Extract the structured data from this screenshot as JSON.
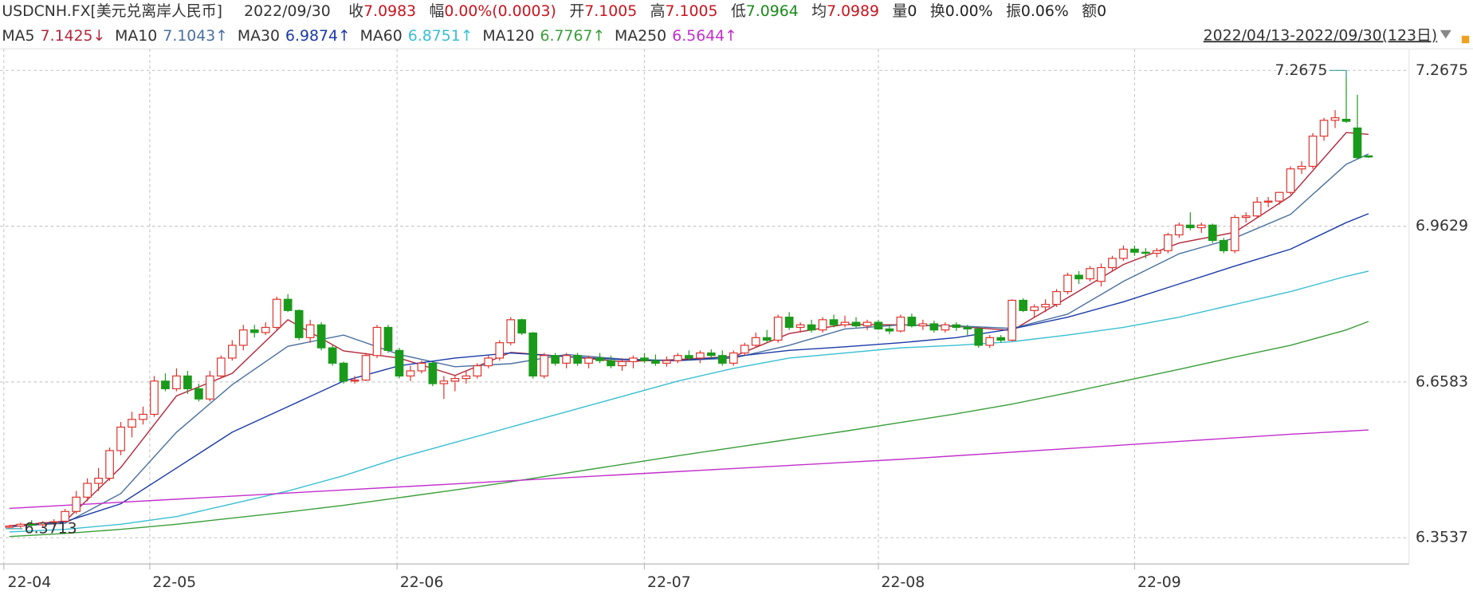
{
  "chart_data": {
    "type": "candlestick",
    "title": "USDCNH.FX[美元兑离岸人民币]",
    "date": "2022/09/30",
    "quote": [
      {
        "label": "收",
        "value": 7.0983,
        "color": "#c8141e"
      },
      {
        "label": "幅",
        "value": "0.00%(0.0003)",
        "color": "#c8141e"
      },
      {
        "label": "开",
        "value": 7.1005,
        "color": "#c8141e"
      },
      {
        "label": "高",
        "value": 7.1005,
        "color": "#c8141e"
      },
      {
        "label": "低",
        "value": 7.0964,
        "color": "#1a8a1a"
      },
      {
        "label": "均",
        "value": 7.0989,
        "color": "#c8141e"
      },
      {
        "label": "量",
        "value": 0,
        "color": "#222222"
      },
      {
        "label": "换",
        "value": "0.00%",
        "color": "#222222"
      },
      {
        "label": "振",
        "value": "0.06%",
        "color": "#222222"
      },
      {
        "label": "额",
        "value": 0,
        "color": "#222222"
      }
    ],
    "range_label": "2022/04/13-2022/09/30(123日)",
    "up_color": "#e0302a",
    "down_color": "#1a9a1a",
    "ylim": [
      6.3023,
      7.3097
    ],
    "yticks": [
      7.2675,
      6.9629,
      6.6583,
      6.3537
    ],
    "xlim": [
      -0.84,
      125.64
    ],
    "xticks": [
      {
        "value": -0.5,
        "label": "22-04"
      },
      {
        "value": 12.6,
        "label": "22-05"
      },
      {
        "value": 34.8,
        "label": "22-06"
      },
      {
        "value": 57,
        "label": "22-07"
      },
      {
        "value": 78,
        "label": "22-08"
      },
      {
        "value": 101,
        "label": "22-09"
      }
    ],
    "grid": true,
    "max_annotation": 7.2675,
    "min_annotation": 6.3713,
    "ohlc": [
      [
        6.374,
        6.379,
        6.3713,
        6.3765
      ],
      [
        6.3765,
        6.383,
        6.373,
        6.38
      ],
      [
        6.38,
        6.388,
        6.376,
        6.379
      ],
      [
        6.379,
        6.386,
        6.374,
        6.383
      ],
      [
        6.383,
        6.39,
        6.378,
        6.385
      ],
      [
        6.386,
        6.41,
        6.383,
        6.405
      ],
      [
        6.405,
        6.445,
        6.4,
        6.433
      ],
      [
        6.433,
        6.47,
        6.425,
        6.46
      ],
      [
        6.46,
        6.49,
        6.445,
        6.47
      ],
      [
        6.47,
        6.53,
        6.465,
        6.524
      ],
      [
        6.524,
        6.58,
        6.515,
        6.57
      ],
      [
        6.57,
        6.6,
        6.55,
        6.585
      ],
      [
        6.585,
        6.61,
        6.575,
        6.595
      ],
      [
        6.595,
        6.67,
        6.59,
        6.66
      ],
      [
        6.66,
        6.675,
        6.64,
        6.645
      ],
      [
        6.645,
        6.685,
        6.64,
        6.67
      ],
      [
        6.67,
        6.68,
        6.635,
        6.645
      ],
      [
        6.645,
        6.655,
        6.62,
        6.625
      ],
      [
        6.625,
        6.68,
        6.62,
        6.67
      ],
      [
        6.67,
        6.71,
        6.665,
        6.705
      ],
      [
        6.705,
        6.74,
        6.7,
        6.73
      ],
      [
        6.73,
        6.77,
        6.72,
        6.76
      ],
      [
        6.76,
        6.77,
        6.745,
        6.755
      ],
      [
        6.755,
        6.775,
        6.75,
        6.765
      ],
      [
        6.765,
        6.825,
        6.76,
        6.82
      ],
      [
        6.82,
        6.83,
        6.795,
        6.798
      ],
      [
        6.798,
        6.8,
        6.74,
        6.745
      ],
      [
        6.745,
        6.78,
        6.735,
        6.77
      ],
      [
        6.77,
        6.775,
        6.72,
        6.725
      ],
      [
        6.725,
        6.73,
        6.69,
        6.695
      ],
      [
        6.695,
        6.698,
        6.655,
        6.66
      ],
      [
        6.66,
        6.67,
        6.655,
        6.662
      ],
      [
        6.662,
        6.715,
        6.66,
        6.71
      ],
      [
        6.71,
        6.77,
        6.705,
        6.765
      ],
      [
        6.765,
        6.77,
        6.715,
        6.72
      ],
      [
        6.72,
        6.725,
        6.665,
        6.67
      ],
      [
        6.67,
        6.69,
        6.66,
        6.68
      ],
      [
        6.68,
        6.7,
        6.675,
        6.695
      ],
      [
        6.695,
        6.698,
        6.65,
        6.655
      ],
      [
        6.655,
        6.67,
        6.625,
        6.66
      ],
      [
        6.66,
        6.67,
        6.64,
        6.665
      ],
      [
        6.665,
        6.68,
        6.655,
        6.67
      ],
      [
        6.67,
        6.695,
        6.665,
        6.69
      ],
      [
        6.69,
        6.71,
        6.685,
        6.705
      ],
      [
        6.705,
        6.74,
        6.7,
        6.735
      ],
      [
        6.735,
        6.785,
        6.73,
        6.78
      ],
      [
        6.78,
        6.782,
        6.75,
        6.754
      ],
      [
        6.754,
        6.756,
        6.665,
        6.67
      ],
      [
        6.67,
        6.715,
        6.665,
        6.71
      ],
      [
        6.71,
        6.715,
        6.69,
        6.695
      ],
      [
        6.695,
        6.715,
        6.685,
        6.71
      ],
      [
        6.71,
        6.715,
        6.69,
        6.695
      ],
      [
        6.695,
        6.71,
        6.685,
        6.705
      ],
      [
        6.705,
        6.715,
        6.695,
        6.7
      ],
      [
        6.7,
        6.71,
        6.685,
        6.69
      ],
      [
        6.69,
        6.705,
        6.68,
        6.698
      ],
      [
        6.698,
        6.71,
        6.685,
        6.705
      ],
      [
        6.705,
        6.715,
        6.695,
        6.7
      ],
      [
        6.7,
        6.712,
        6.69,
        6.695
      ],
      [
        6.695,
        6.708,
        6.688,
        6.7
      ],
      [
        6.7,
        6.715,
        6.695,
        6.71
      ],
      [
        6.71,
        6.72,
        6.7,
        6.705
      ],
      [
        6.705,
        6.72,
        6.695,
        6.715
      ],
      [
        6.715,
        6.722,
        6.705,
        6.71
      ],
      [
        6.71,
        6.72,
        6.69,
        6.695
      ],
      [
        6.695,
        6.72,
        6.69,
        6.715
      ],
      [
        6.715,
        6.735,
        6.71,
        6.73
      ],
      [
        6.73,
        6.755,
        6.725,
        6.745
      ],
      [
        6.745,
        6.76,
        6.735,
        6.74
      ],
      [
        6.74,
        6.79,
        6.735,
        6.785
      ],
      [
        6.785,
        6.795,
        6.76,
        6.765
      ],
      [
        6.765,
        6.775,
        6.755,
        6.77
      ],
      [
        6.77,
        6.78,
        6.755,
        6.76
      ],
      [
        6.76,
        6.785,
        6.755,
        6.78
      ],
      [
        6.78,
        6.79,
        6.765,
        6.77
      ],
      [
        6.77,
        6.788,
        6.765,
        6.775
      ],
      [
        6.775,
        6.785,
        6.765,
        6.768
      ],
      [
        6.768,
        6.78,
        6.76,
        6.775
      ],
      [
        6.775,
        6.78,
        6.76,
        6.762
      ],
      [
        6.762,
        6.77,
        6.752,
        6.758
      ],
      [
        6.758,
        6.79,
        6.755,
        6.785
      ],
      [
        6.785,
        6.792,
        6.765,
        6.768
      ],
      [
        6.768,
        6.78,
        6.76,
        6.772
      ],
      [
        6.772,
        6.778,
        6.755,
        6.76
      ],
      [
        6.76,
        6.775,
        6.755,
        6.77
      ],
      [
        6.77,
        6.775,
        6.758,
        6.765
      ],
      [
        6.765,
        6.77,
        6.75,
        6.762
      ],
      [
        6.762,
        6.765,
        6.725,
        6.73
      ],
      [
        6.73,
        6.75,
        6.725,
        6.745
      ],
      [
        6.745,
        6.75,
        6.735,
        6.74
      ],
      [
        6.74,
        6.82,
        6.738,
        6.818
      ],
      [
        6.818,
        6.822,
        6.795,
        6.798
      ],
      [
        6.798,
        6.81,
        6.785,
        6.805
      ],
      [
        6.805,
        6.82,
        6.795,
        6.81
      ],
      [
        6.81,
        6.84,
        6.805,
        6.835
      ],
      [
        6.835,
        6.872,
        6.83,
        6.867
      ],
      [
        6.867,
        6.875,
        6.85,
        6.86
      ],
      [
        6.86,
        6.885,
        6.855,
        6.88
      ],
      [
        6.855,
        6.89,
        6.845,
        6.882
      ],
      [
        6.882,
        6.905,
        6.875,
        6.9
      ],
      [
        6.9,
        6.925,
        6.895,
        6.918
      ],
      [
        6.918,
        6.925,
        6.905,
        6.912
      ],
      [
        6.912,
        6.92,
        6.9,
        6.91
      ],
      [
        6.91,
        6.92,
        6.902,
        6.915
      ],
      [
        6.915,
        6.95,
        6.91,
        6.946
      ],
      [
        6.946,
        6.97,
        6.94,
        6.965
      ],
      [
        6.965,
        6.99,
        6.955,
        6.96
      ],
      [
        6.96,
        6.97,
        6.95,
        6.965
      ],
      [
        6.965,
        6.968,
        6.93,
        6.935
      ],
      [
        6.935,
        6.94,
        6.91,
        6.915
      ],
      [
        6.915,
        6.985,
        6.91,
        6.98
      ],
      [
        6.98,
        6.99,
        6.97,
        6.983
      ],
      [
        6.983,
        7.02,
        6.98,
        7.01
      ],
      [
        7.01,
        7.02,
        7.0,
        7.012
      ],
      [
        7.012,
        7.03,
        7.005,
        7.029
      ],
      [
        7.029,
        7.08,
        7.025,
        7.075
      ],
      [
        7.075,
        7.09,
        7.065,
        7.08
      ],
      [
        7.08,
        7.145,
        7.075,
        7.139
      ],
      [
        7.139,
        7.175,
        7.13,
        7.17
      ],
      [
        7.17,
        7.19,
        7.155,
        7.175
      ],
      [
        7.172,
        7.2675,
        7.165,
        7.168
      ],
      [
        7.155,
        7.22,
        7.095,
        7.097
      ],
      [
        7.1005,
        7.1005,
        7.0964,
        7.0983
      ]
    ],
    "ma_x": [
      0,
      5,
      10,
      15,
      20,
      25,
      30,
      35,
      40,
      45,
      50,
      55,
      60,
      65,
      70,
      75,
      80,
      85,
      90,
      95,
      100,
      105,
      110,
      115,
      120,
      122
    ],
    "series": [
      {
        "name": "MA5",
        "header_label": "7.1425↓",
        "color": "#b2283c",
        "values": [
          6.377,
          6.386,
          6.491,
          6.631,
          6.675,
          6.78,
          6.719,
          6.705,
          6.671,
          6.716,
          6.708,
          6.698,
          6.702,
          6.708,
          6.753,
          6.771,
          6.77,
          6.767,
          6.759,
          6.823,
          6.888,
          6.93,
          6.951,
          7.022,
          7.146,
          7.1425
        ]
      },
      {
        "name": "MA10",
        "header_label": "7.1043↑",
        "color": "#4a70a0",
        "values": [
          6.376,
          6.382,
          6.44,
          6.56,
          6.653,
          6.728,
          6.75,
          6.712,
          6.688,
          6.694,
          6.712,
          6.703,
          6.7,
          6.705,
          6.73,
          6.762,
          6.77,
          6.768,
          6.763,
          6.791,
          6.855,
          6.909,
          6.94,
          6.986,
          7.084,
          7.1043
        ]
      },
      {
        "name": "MA30",
        "header_label": "6.9874↑",
        "color": "#1a3aa8",
        "values": [
          6.375,
          6.385,
          6.42,
          6.49,
          6.56,
          6.61,
          6.66,
          6.69,
          6.705,
          6.715,
          6.708,
          6.702,
          6.7,
          6.708,
          6.72,
          6.727,
          6.735,
          6.745,
          6.762,
          6.785,
          6.815,
          6.85,
          6.885,
          6.918,
          6.97,
          6.9874
        ]
      },
      {
        "name": "MA60",
        "header_label": "6.8751↑",
        "color": "#38bfd2",
        "values": [
          6.365,
          6.37,
          6.38,
          6.395,
          6.42,
          6.445,
          6.475,
          6.51,
          6.54,
          6.57,
          6.6,
          6.63,
          6.66,
          6.685,
          6.705,
          6.715,
          6.725,
          6.73,
          6.737,
          6.75,
          6.765,
          6.785,
          6.81,
          6.835,
          6.865,
          6.8751
        ]
      },
      {
        "name": "MA120",
        "header_label": "6.7767↑",
        "color": "#3a9e3a",
        "values": [
          6.356,
          6.362,
          6.37,
          6.38,
          6.392,
          6.404,
          6.417,
          6.432,
          6.447,
          6.463,
          6.48,
          6.497,
          6.514,
          6.53,
          6.546,
          6.562,
          6.579,
          6.596,
          6.615,
          6.637,
          6.66,
          6.683,
          6.707,
          6.73,
          6.76,
          6.7767
        ]
      },
      {
        "name": "MA250",
        "header_label": "6.5644↑",
        "color": "#c22fcc",
        "values": [
          6.411,
          6.417,
          6.423,
          6.429,
          6.435,
          6.441,
          6.447,
          6.453,
          6.459,
          6.465,
          6.471,
          6.477,
          6.483,
          6.489,
          6.495,
          6.501,
          6.507,
          6.514,
          6.521,
          6.528,
          6.535,
          6.542,
          6.549,
          6.556,
          6.562,
          6.5644
        ]
      }
    ]
  }
}
